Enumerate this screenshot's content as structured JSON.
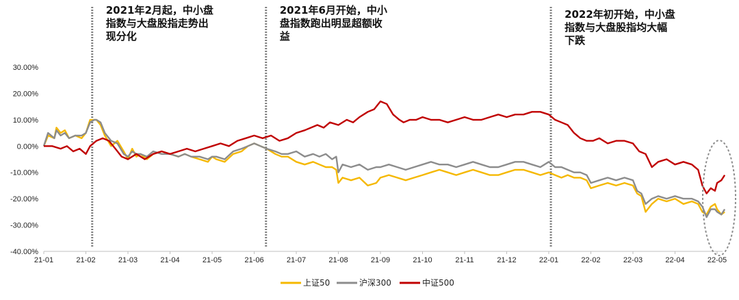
{
  "chart_data": {
    "type": "line",
    "title": "",
    "xlabel": "",
    "ylabel": "",
    "ylim": [
      -40,
      30
    ],
    "y_ticks": [
      "30.00%",
      "20.00%",
      "10.00%",
      "0.00%",
      "-10.00%",
      "-20.00%",
      "-30.00%",
      "-40.00%"
    ],
    "x_ticks": [
      "21-01",
      "21-02",
      "21-03",
      "21-04",
      "21-05",
      "21-06",
      "21-07",
      "21-08",
      "21-09",
      "21-10",
      "21-11",
      "21-12",
      "22-01",
      "22-02",
      "22-03",
      "22-04",
      "22-05"
    ],
    "x_ticks_index": [
      0,
      1,
      2,
      3,
      4,
      5,
      6,
      7,
      8,
      9,
      10,
      11,
      12,
      13,
      14,
      15,
      16
    ],
    "annotations": [
      {
        "text_lines": [
          "2021年2月起，中小盘",
          "指数与大盘股指走势出",
          "现分化"
        ],
        "x_month": 1.15
      },
      {
        "text_lines": [
          "2021年6月开始，中小",
          "盘指数跑出明显超额收",
          "益"
        ],
        "x_month": 5.28
      },
      {
        "text_lines": [
          "2022年初开始，中小盘",
          "指数与大盘股指均大幅",
          "下跌"
        ],
        "x_month": 12.05
      }
    ],
    "legend": [
      {
        "name": "上证50",
        "color": "#F5B800"
      },
      {
        "name": "沪深300",
        "color": "#8C8C8C"
      },
      {
        "name": "中证500",
        "color": "#C00000"
      }
    ],
    "series": [
      {
        "name": "上证50",
        "color": "#F5B800",
        "x": [
          0,
          0.1,
          0.25,
          0.3,
          0.4,
          0.5,
          0.6,
          0.75,
          0.9,
          1.0,
          1.1,
          1.2,
          1.25,
          1.35,
          1.45,
          1.6,
          1.75,
          1.9,
          2.0,
          2.1,
          2.2,
          2.3,
          2.45,
          2.6,
          2.8,
          3.0,
          3.2,
          3.35,
          3.5,
          3.7,
          3.9,
          4.0,
          4.1,
          4.3,
          4.5,
          4.7,
          4.85,
          5.0,
          5.15,
          5.3,
          5.5,
          5.65,
          5.8,
          6.0,
          6.2,
          6.4,
          6.55,
          6.7,
          6.85,
          6.95,
          7.0,
          7.1,
          7.3,
          7.5,
          7.7,
          7.9,
          8.0,
          8.2,
          8.4,
          8.6,
          8.8,
          9.0,
          9.2,
          9.4,
          9.6,
          9.8,
          10.0,
          10.2,
          10.4,
          10.6,
          10.8,
          11.0,
          11.2,
          11.4,
          11.6,
          11.8,
          12.0,
          12.15,
          12.3,
          12.45,
          12.6,
          12.75,
          12.9,
          13.0,
          13.2,
          13.4,
          13.6,
          13.8,
          14.0,
          14.1,
          14.2,
          14.3,
          14.45,
          14.6,
          14.8,
          15.0,
          15.2,
          15.4,
          15.55,
          15.65,
          15.75,
          15.85,
          15.95,
          16.0,
          16.1,
          16.18
        ],
        "values": [
          0,
          4,
          3,
          7,
          5,
          6,
          3,
          4,
          3,
          5,
          10,
          10,
          10,
          8,
          4,
          0,
          2,
          -2,
          -5,
          -1,
          -4,
          -3,
          -5,
          -3,
          -2,
          -3,
          -4,
          -3,
          -4,
          -5,
          -6,
          -4,
          -5,
          -6,
          -3,
          -2,
          0,
          1,
          0,
          -1,
          -3,
          -4,
          -4,
          -6,
          -7,
          -6,
          -7,
          -8,
          -8,
          -9,
          -14,
          -12,
          -13,
          -12,
          -15,
          -14,
          -12,
          -11,
          -12,
          -13,
          -12,
          -11,
          -10,
          -9,
          -10,
          -11,
          -10,
          -9,
          -10,
          -11,
          -11,
          -10,
          -9,
          -9,
          -10,
          -11,
          -10,
          -11,
          -12,
          -11,
          -12,
          -12,
          -13,
          -16,
          -15,
          -14,
          -15,
          -14,
          -15,
          -18,
          -19,
          -25,
          -22,
          -20,
          -21,
          -20,
          -22,
          -21,
          -22,
          -25,
          -26,
          -23,
          -22,
          -24,
          -26,
          -25
        ]
      },
      {
        "name": "沪深300",
        "color": "#8C8C8C",
        "x": [
          0,
          0.1,
          0.25,
          0.3,
          0.4,
          0.5,
          0.6,
          0.75,
          0.9,
          1.0,
          1.1,
          1.2,
          1.25,
          1.35,
          1.45,
          1.6,
          1.75,
          1.9,
          2.0,
          2.1,
          2.2,
          2.3,
          2.45,
          2.6,
          2.8,
          3.0,
          3.2,
          3.35,
          3.5,
          3.7,
          3.9,
          4.0,
          4.1,
          4.3,
          4.5,
          4.7,
          4.85,
          5.0,
          5.15,
          5.3,
          5.5,
          5.65,
          5.8,
          6.0,
          6.2,
          6.4,
          6.55,
          6.7,
          6.85,
          6.95,
          7.0,
          7.1,
          7.3,
          7.5,
          7.7,
          7.9,
          8.0,
          8.2,
          8.4,
          8.6,
          8.8,
          9.0,
          9.2,
          9.4,
          9.6,
          9.8,
          10.0,
          10.2,
          10.4,
          10.6,
          10.8,
          11.0,
          11.2,
          11.4,
          11.6,
          11.8,
          12.0,
          12.15,
          12.3,
          12.45,
          12.6,
          12.75,
          12.9,
          13.0,
          13.2,
          13.4,
          13.6,
          13.8,
          14.0,
          14.1,
          14.2,
          14.3,
          14.45,
          14.6,
          14.8,
          15.0,
          15.2,
          15.4,
          15.55,
          15.65,
          15.75,
          15.85,
          15.95,
          16.0,
          16.1,
          16.18
        ],
        "values": [
          0,
          5,
          3,
          6,
          4,
          5,
          3,
          4,
          4,
          5,
          9,
          10,
          10,
          9,
          5,
          2,
          1,
          -3,
          -4,
          -2,
          -3,
          -3,
          -4,
          -2,
          -3,
          -3,
          -4,
          -3,
          -4,
          -4,
          -5,
          -4,
          -4,
          -5,
          -2,
          -1,
          0,
          1,
          0,
          -1,
          -2,
          -3,
          -3,
          -2,
          -4,
          -3,
          -4,
          -3,
          -5,
          -4,
          -10,
          -7,
          -8,
          -7,
          -9,
          -8,
          -8,
          -7,
          -8,
          -9,
          -8,
          -7,
          -6,
          -7,
          -7,
          -8,
          -7,
          -6,
          -7,
          -8,
          -8,
          -7,
          -6,
          -6,
          -7,
          -8,
          -6,
          -8,
          -8,
          -9,
          -10,
          -10,
          -11,
          -14,
          -13,
          -12,
          -13,
          -12,
          -13,
          -17,
          -18,
          -22,
          -20,
          -19,
          -20,
          -19,
          -20,
          -20,
          -21,
          -23,
          -27,
          -24,
          -24,
          -25,
          -26,
          -24
        ]
      },
      {
        "name": "中证500",
        "color": "#C00000",
        "x": [
          0,
          0.2,
          0.4,
          0.55,
          0.7,
          0.85,
          1.0,
          1.1,
          1.25,
          1.4,
          1.55,
          1.7,
          1.85,
          2.0,
          2.2,
          2.4,
          2.6,
          2.8,
          3.0,
          3.2,
          3.4,
          3.6,
          3.8,
          4.0,
          4.2,
          4.4,
          4.6,
          4.8,
          5.0,
          5.2,
          5.4,
          5.6,
          5.8,
          6.0,
          6.2,
          6.35,
          6.5,
          6.65,
          6.8,
          7.0,
          7.2,
          7.35,
          7.5,
          7.7,
          7.85,
          8.0,
          8.15,
          8.3,
          8.45,
          8.55,
          8.7,
          8.85,
          9.0,
          9.2,
          9.4,
          9.6,
          9.8,
          10.0,
          10.2,
          10.4,
          10.6,
          10.8,
          11.0,
          11.2,
          11.4,
          11.6,
          11.8,
          12.0,
          12.15,
          12.3,
          12.45,
          12.6,
          12.75,
          12.9,
          13.05,
          13.2,
          13.4,
          13.6,
          13.8,
          14.0,
          14.15,
          14.3,
          14.45,
          14.6,
          14.8,
          15.0,
          15.2,
          15.4,
          15.55,
          15.65,
          15.75,
          15.85,
          15.95,
          16.0,
          16.1,
          16.18
        ],
        "values": [
          0,
          0,
          -1,
          0,
          -2,
          -1,
          -3,
          0,
          2,
          3,
          2,
          -1,
          -4,
          -5,
          -3,
          -5,
          -3,
          -2,
          -3,
          -2,
          -1,
          -2,
          -1,
          0,
          1,
          0,
          2,
          3,
          4,
          3,
          4,
          2,
          3,
          5,
          6,
          7,
          8,
          7,
          9,
          8,
          10,
          9,
          11,
          13,
          14,
          17,
          16,
          12,
          10,
          9,
          10,
          10,
          11,
          10,
          10,
          9,
          10,
          11,
          10,
          10,
          11,
          12,
          11,
          12,
          12,
          13,
          13,
          12,
          10,
          9,
          8,
          5,
          3,
          2,
          2,
          3,
          1,
          2,
          2,
          1,
          -2,
          -3,
          -8,
          -6,
          -5,
          -7,
          -6,
          -7,
          -9,
          -15,
          -18,
          -16,
          -17,
          -14,
          -13,
          -11
        ]
      }
    ]
  }
}
